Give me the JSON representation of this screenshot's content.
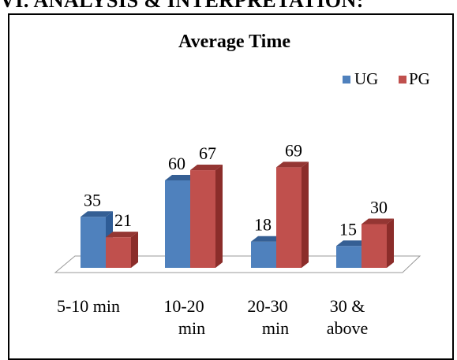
{
  "page_heading": "VI.      ANALYSIS & INTERPRETATION:",
  "chart_data": {
    "type": "bar",
    "title": "Average Time",
    "categories": [
      [
        "5-10 min"
      ],
      [
        "10-20",
        "min"
      ],
      [
        "20-30",
        "min"
      ],
      [
        "30 &",
        "above"
      ]
    ],
    "series": [
      {
        "name": "UG",
        "values": [
          35,
          60,
          18,
          15
        ],
        "color": "#4F81BD",
        "side": "#2E5C96",
        "top": "#355F94"
      },
      {
        "name": "PG",
        "values": [
          21,
          67,
          69,
          30
        ],
        "color": "#C0504D",
        "side": "#8B2D2A",
        "top": "#943633"
      }
    ],
    "ylim": [
      0,
      80
    ],
    "legend_position": "top-right",
    "grid": false,
    "data_labels": true,
    "style": "3d-column"
  }
}
